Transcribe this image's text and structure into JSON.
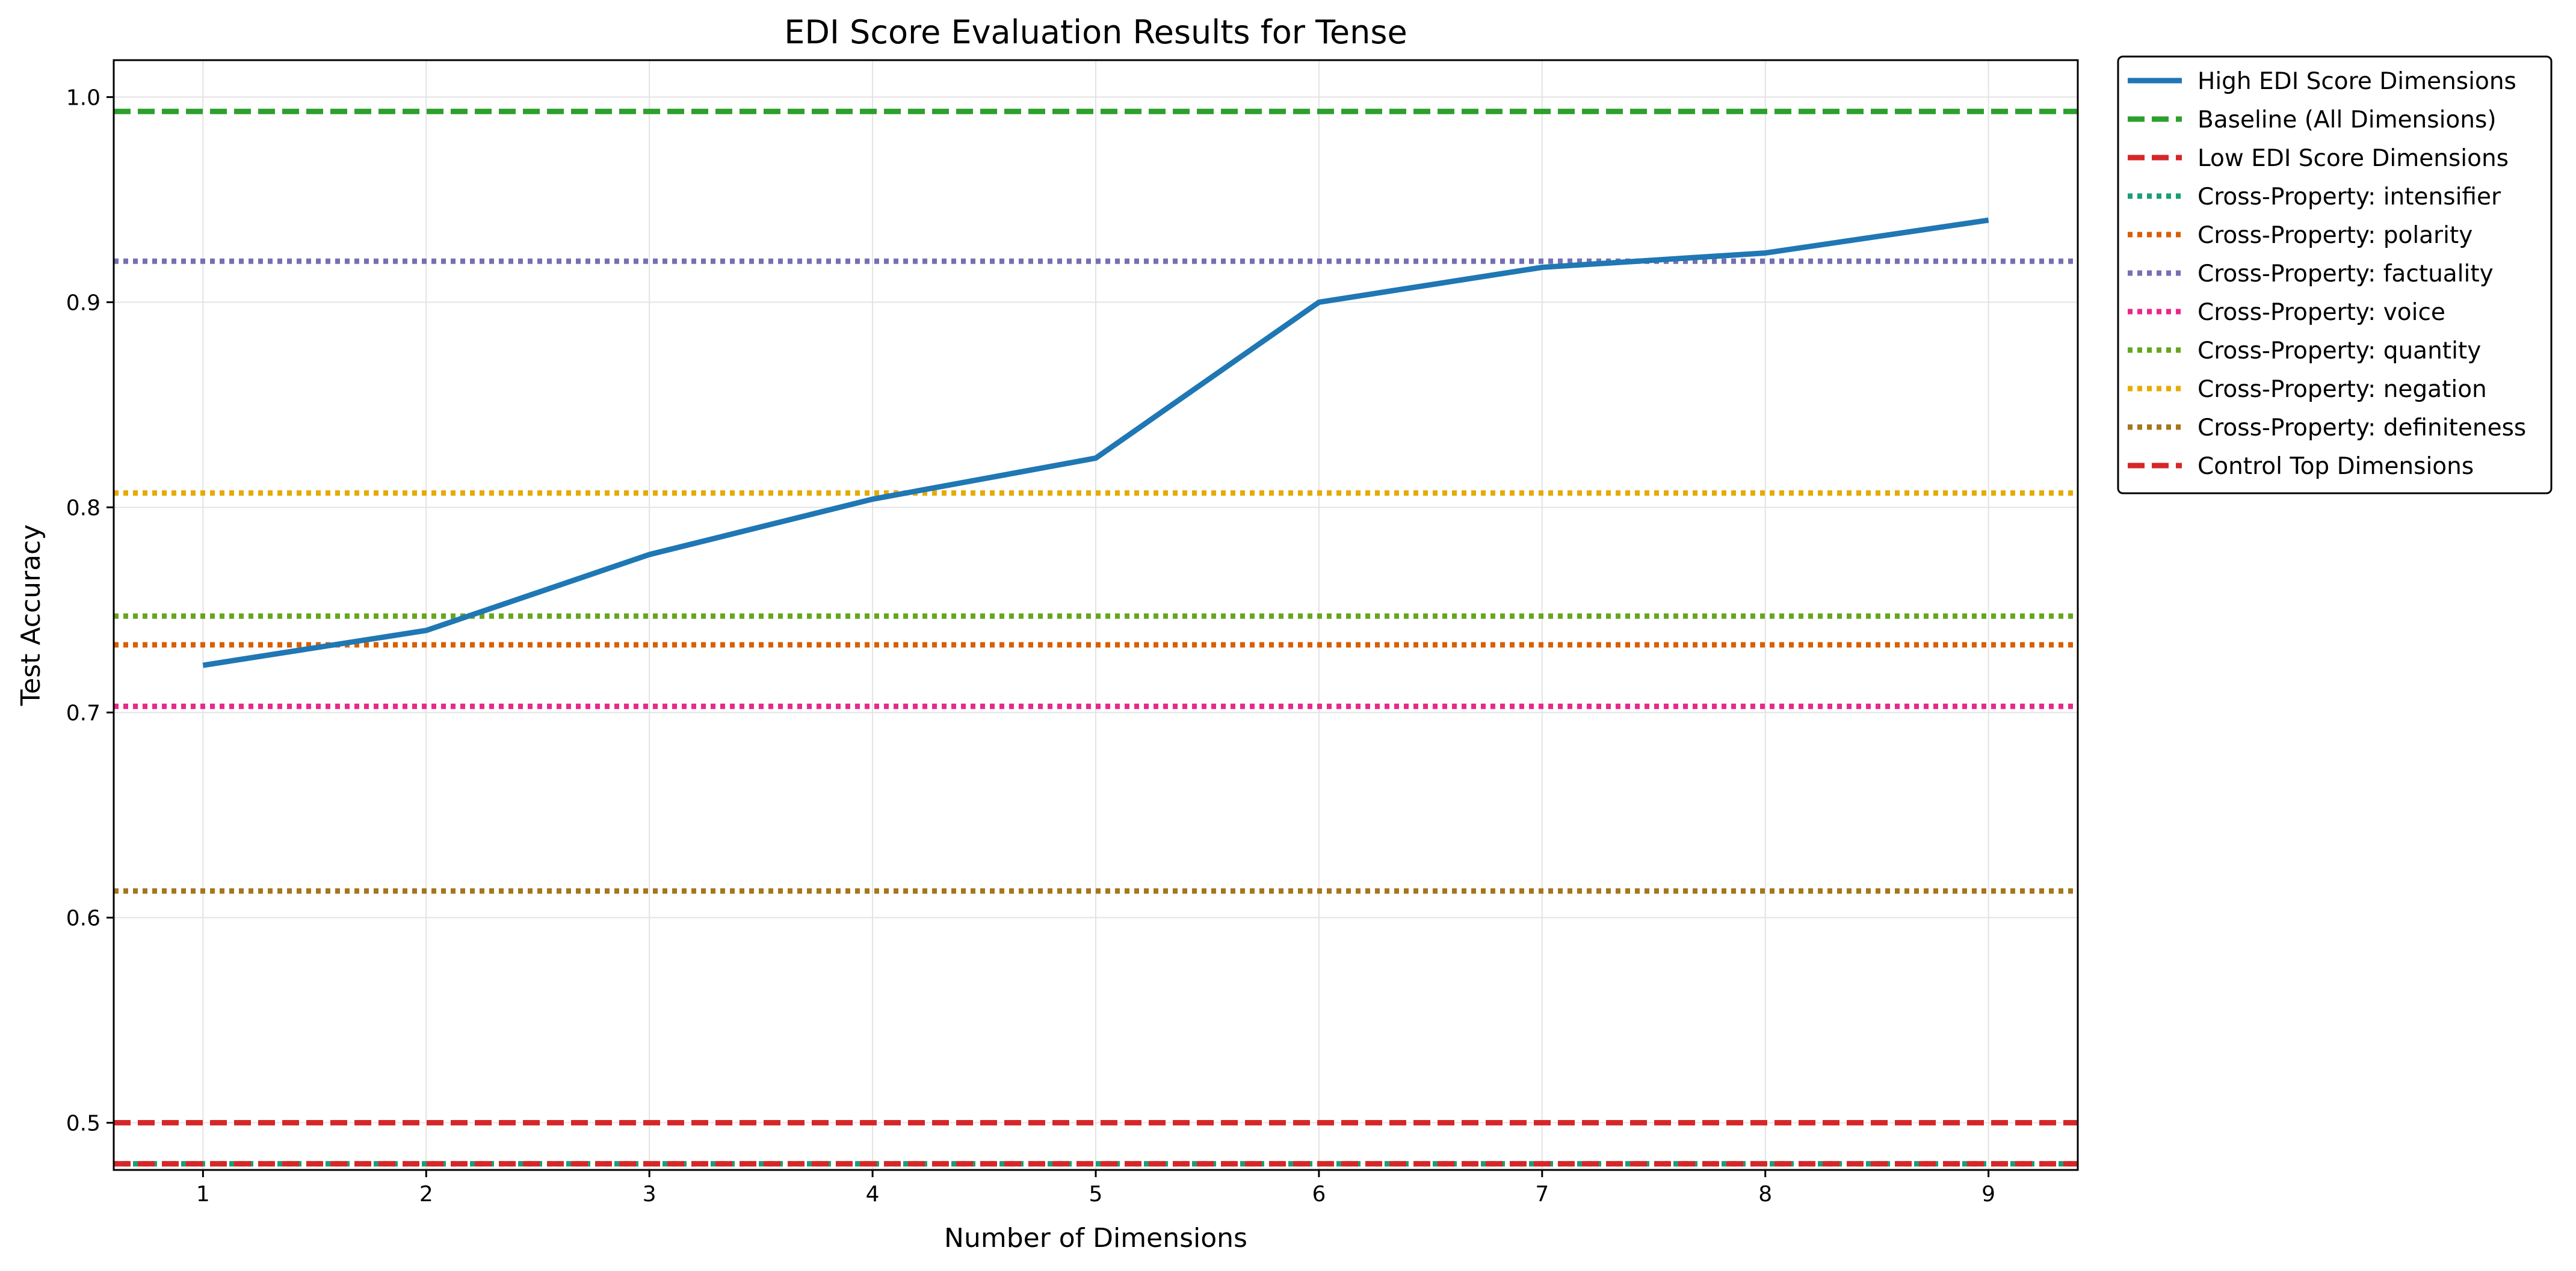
{
  "chart_data": {
    "type": "line",
    "title": "EDI Score Evaluation Results for Tense",
    "xlabel": "Number of Dimensions",
    "ylabel": "Test Accuracy",
    "xlim": [
      0.6,
      9.4
    ],
    "ylim": [
      0.477,
      1.018
    ],
    "x_ticks": [
      1,
      2,
      3,
      4,
      5,
      6,
      7,
      8,
      9
    ],
    "y_ticks": [
      0.5,
      0.6,
      0.7,
      0.8,
      0.9,
      1.0
    ],
    "y_tick_labels": [
      "0.5",
      "0.6",
      "0.7",
      "0.8",
      "0.9",
      "1.0"
    ],
    "grid": true,
    "legend_position": "outside-right-top",
    "series": [
      {
        "name": "High EDI Score Dimensions",
        "kind": "line",
        "style": "solid",
        "color": "#1f77b4",
        "x": [
          1,
          2,
          3,
          4,
          5,
          6,
          7,
          8,
          9
        ],
        "y": [
          0.723,
          0.74,
          0.777,
          0.804,
          0.824,
          0.9,
          0.917,
          0.924,
          0.94
        ]
      },
      {
        "name": "Baseline (All Dimensions)",
        "kind": "hline",
        "style": "dashed",
        "color": "#2ca02c",
        "y": 0.993
      },
      {
        "name": "Low EDI Score Dimensions",
        "kind": "hline",
        "style": "dashed",
        "color": "#d62728",
        "y": 0.5
      },
      {
        "name": "Cross-Property: intensifier",
        "kind": "hline",
        "style": "dotted",
        "color": "#1b9e77",
        "y": 0.48
      },
      {
        "name": "Cross-Property: polarity",
        "kind": "hline",
        "style": "dotted",
        "color": "#d95f02",
        "y": 0.733
      },
      {
        "name": "Cross-Property: factuality",
        "kind": "hline",
        "style": "dotted",
        "color": "#7570b3",
        "y": 0.92
      },
      {
        "name": "Cross-Property: voice",
        "kind": "hline",
        "style": "dotted",
        "color": "#e7298a",
        "y": 0.703
      },
      {
        "name": "Cross-Property: quantity",
        "kind": "hline",
        "style": "dotted",
        "color": "#66a61e",
        "y": 0.747
      },
      {
        "name": "Cross-Property: negation",
        "kind": "hline",
        "style": "dotted",
        "color": "#e6ab02",
        "y": 0.807
      },
      {
        "name": "Cross-Property: definiteness",
        "kind": "hline",
        "style": "dotted",
        "color": "#a6761d",
        "y": 0.613
      },
      {
        "name": "Control Top Dimensions",
        "kind": "hline",
        "style": "dashed",
        "color": "#d62728",
        "y": 0.48
      }
    ]
  }
}
